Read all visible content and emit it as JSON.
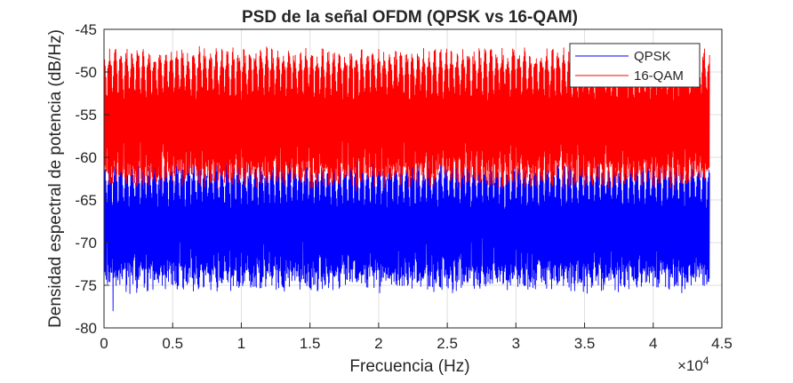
{
  "chart_data": {
    "type": "line",
    "title": "PSD de la señal OFDM (QPSK vs 16-QAM)",
    "xlabel": "Frecuencia (Hz)",
    "ylabel": "Densidad espectral de potencia (dB/Hz)",
    "x_exponent_base": "×10",
    "x_exponent_power": "4",
    "xlim": [
      0,
      45000
    ],
    "ylim": [
      -80,
      -45
    ],
    "x_ticks": [
      0,
      5000,
      10000,
      15000,
      20000,
      25000,
      30000,
      35000,
      40000,
      45000
    ],
    "x_tick_labels": [
      "0",
      "0.5",
      "1",
      "1.5",
      "2",
      "2.5",
      "3",
      "3.5",
      "4",
      "4.5"
    ],
    "y_ticks": [
      -80,
      -75,
      -70,
      -65,
      -60,
      -55,
      -50,
      -45
    ],
    "y_tick_labels": [
      "-80",
      "-75",
      "-70",
      "-65",
      "-60",
      "-55",
      "-50",
      "-45"
    ],
    "grid": true,
    "legend_position": "top-right",
    "x_range": [
      0,
      44100
    ],
    "series": [
      {
        "name": "QPSK",
        "color": "#0000ff",
        "band_top_range": [
          -62,
          -60
        ],
        "band_bottom_range": [
          -76,
          -73
        ],
        "min_value": -78,
        "mean_level": -67
      },
      {
        "name": "16-QAM",
        "color": "#ff0000",
        "band_top_range": [
          -49,
          -47
        ],
        "band_bottom_range": [
          -64,
          -61
        ],
        "mean_level": -55
      }
    ],
    "ripple_periods": 108
  }
}
